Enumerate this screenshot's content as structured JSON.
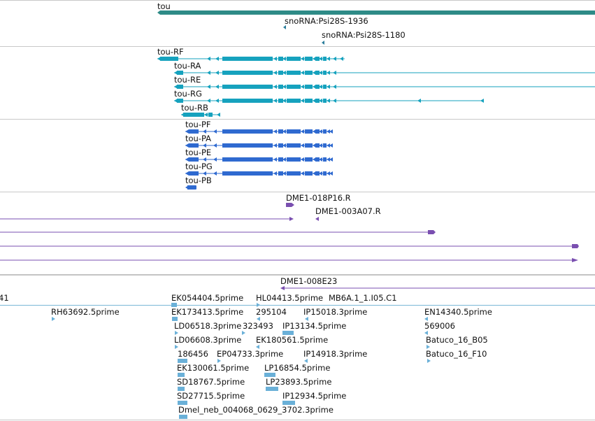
{
  "colors": {
    "gene": "#2e8b87",
    "snorna": "#2a7d9b",
    "transcript": "#16a2be",
    "protein": "#2f6ad0",
    "clone": "#7a4fb0",
    "est": "#6ab0d8",
    "separator": "#c8c8c8"
  },
  "gene_track": {
    "gene_label": "tou",
    "snorna_1": "snoRNA:Psi28S-1936",
    "snorna_2": "snoRNA:Psi28S-1180"
  },
  "transcript_track": {
    "items": [
      "tou-RF",
      "tou-RA",
      "tou-RE",
      "tou-RG",
      "tou-RB"
    ]
  },
  "protein_track": {
    "items": [
      "tou-PF",
      "tou-PA",
      "tou-PE",
      "tou-PG",
      "tou-PB"
    ]
  },
  "clone_track": {
    "labels": [
      "DME1-018P16.R",
      "DME1-003A07.R",
      "DME1-008E23"
    ]
  },
  "est_track": {
    "labels": [
      "41",
      "EK054404.5prime",
      "HL04413.5prime",
      "MB6A.1_1.I05.C1",
      "RH63692.5prime",
      "EK173413.5prime",
      "295104",
      "IP15018.3prime",
      "EN14340.5prime",
      "LD06518.3prime",
      "323493",
      "IP13134.5prime",
      "569006",
      "LD06608.3prime",
      "EK180561.5prime",
      "Batuco_16_B05",
      "186456",
      "EP04733.3prime",
      "IP14918.3prime",
      "Batuco_16_F10",
      "EK130061.5prime",
      "LP16854.5prime",
      "SD18767.5prime",
      "LP23893.5prime",
      "SD27715.5prime",
      "IP12934.5prime",
      "Dmel_neb_004068_0629_3702.3prime"
    ]
  }
}
